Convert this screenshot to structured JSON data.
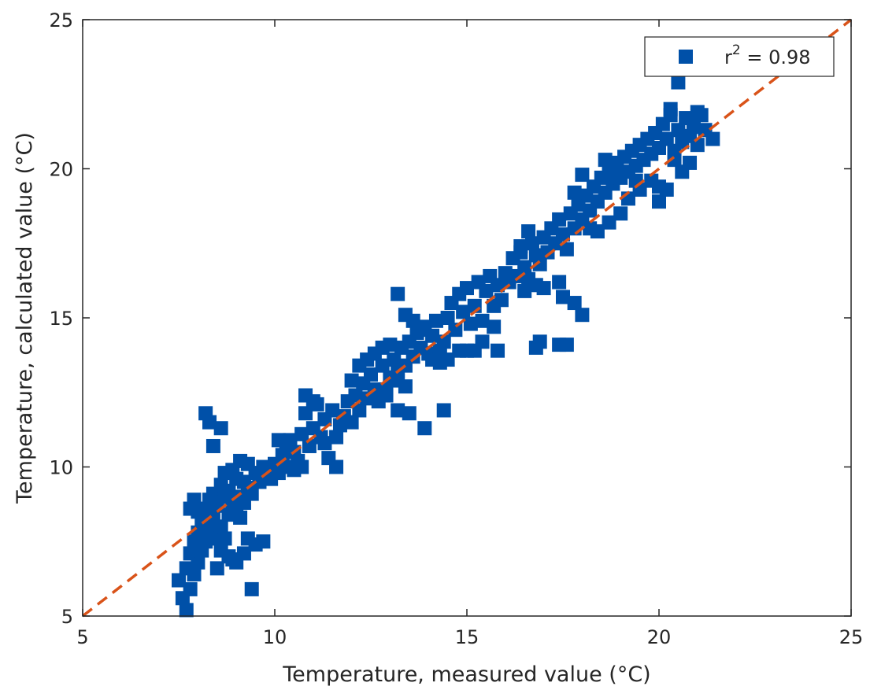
{
  "chart_data": {
    "type": "scatter",
    "title": "",
    "xlabel": "Temperature, measured value (°C)",
    "ylabel": "Temperature, calculated value (°C)",
    "xlim": [
      5,
      25
    ],
    "ylim": [
      5,
      25
    ],
    "xticks": [
      "5",
      "10",
      "15",
      "20",
      "25"
    ],
    "yticks": [
      "5",
      "10",
      "15",
      "20",
      "25"
    ],
    "grid": false,
    "legend_position": "top-right",
    "legend": {
      "marker_label_prefix": "r",
      "marker_label_sup": "2",
      "marker_label_suffix": " = 0.98"
    },
    "colors": {
      "points": "#0050a8",
      "line": "#d95319"
    },
    "reference_line": {
      "x": [
        5,
        25
      ],
      "y": [
        5,
        25
      ],
      "style": "dashed"
    },
    "series": [
      {
        "marker": "square",
        "points": [
          [
            7.5,
            6.2
          ],
          [
            7.6,
            5.6
          ],
          [
            7.7,
            5.2
          ],
          [
            7.7,
            6.6
          ],
          [
            7.8,
            5.9
          ],
          [
            7.8,
            7.1
          ],
          [
            7.9,
            6.4
          ],
          [
            7.9,
            7.5
          ],
          [
            8.0,
            6.8
          ],
          [
            8.0,
            7.8
          ],
          [
            8.1,
            7.2
          ],
          [
            8.1,
            8.2
          ],
          [
            8.2,
            7.5
          ],
          [
            8.2,
            8.6
          ],
          [
            8.3,
            7.9
          ],
          [
            8.3,
            8.9
          ],
          [
            8.4,
            8.3
          ],
          [
            8.4,
            9.1
          ],
          [
            8.5,
            7.6
          ],
          [
            8.5,
            8.7
          ],
          [
            8.6,
            9.4
          ],
          [
            8.6,
            8.0
          ],
          [
            8.7,
            9.0
          ],
          [
            8.7,
            9.8
          ],
          [
            8.8,
            8.4
          ],
          [
            8.8,
            9.2
          ],
          [
            8.9,
            8.8
          ],
          [
            8.9,
            9.9
          ],
          [
            9.0,
            8.6
          ],
          [
            9.0,
            9.6
          ],
          [
            9.1,
            9.0
          ],
          [
            9.1,
            10.2
          ],
          [
            9.2,
            8.8
          ],
          [
            9.2,
            9.5
          ],
          [
            9.3,
            9.3
          ],
          [
            9.3,
            10.1
          ],
          [
            9.4,
            9.1
          ],
          [
            9.5,
            9.8
          ],
          [
            9.6,
            9.5
          ],
          [
            9.7,
            10.0
          ],
          [
            8.2,
            11.8
          ],
          [
            8.3,
            11.5
          ],
          [
            8.4,
            10.7
          ],
          [
            8.6,
            11.3
          ],
          [
            8.4,
            8.8
          ],
          [
            7.8,
            8.6
          ],
          [
            7.9,
            8.9
          ],
          [
            8.0,
            8.5
          ],
          [
            8.6,
            7.2
          ],
          [
            8.8,
            7.0
          ],
          [
            9.0,
            6.8
          ],
          [
            9.2,
            7.1
          ],
          [
            9.4,
            5.9
          ],
          [
            9.5,
            7.4
          ],
          [
            9.7,
            7.5
          ],
          [
            9.3,
            7.6
          ],
          [
            8.9,
            6.9
          ],
          [
            8.5,
            6.6
          ],
          [
            8.7,
            7.6
          ],
          [
            9.1,
            8.3
          ],
          [
            9.8,
            9.9
          ],
          [
            9.9,
            9.6
          ],
          [
            10.0,
            10.1
          ],
          [
            10.1,
            9.8
          ],
          [
            10.2,
            10.4
          ],
          [
            10.3,
            10.0
          ],
          [
            10.4,
            10.9
          ],
          [
            10.5,
            10.5
          ],
          [
            10.6,
            10.2
          ],
          [
            10.7,
            11.1
          ],
          [
            10.8,
            11.8
          ],
          [
            10.9,
            10.7
          ],
          [
            11.0,
            11.3
          ],
          [
            11.1,
            12.1
          ],
          [
            11.2,
            11.0
          ],
          [
            11.3,
            11.6
          ],
          [
            11.4,
            10.3
          ],
          [
            11.5,
            11.9
          ],
          [
            11.6,
            10.0
          ],
          [
            11.7,
            11.4
          ],
          [
            10.1,
            10.9
          ],
          [
            10.3,
            10.6
          ],
          [
            10.5,
            9.9
          ],
          [
            10.7,
            10.0
          ],
          [
            10.8,
            12.4
          ],
          [
            11.0,
            12.2
          ],
          [
            11.3,
            10.8
          ],
          [
            11.6,
            11.0
          ],
          [
            11.8,
            11.7
          ],
          [
            11.9,
            12.2
          ],
          [
            12.0,
            11.5
          ],
          [
            12.1,
            12.4
          ],
          [
            12.2,
            11.9
          ],
          [
            12.3,
            12.8
          ],
          [
            12.4,
            12.3
          ],
          [
            12.5,
            13.1
          ],
          [
            12.6,
            12.6
          ],
          [
            12.7,
            12.2
          ],
          [
            12.8,
            13.4
          ],
          [
            12.9,
            12.4
          ],
          [
            13.0,
            13.0
          ],
          [
            13.1,
            13.6
          ],
          [
            13.2,
            13.2
          ],
          [
            13.3,
            14.0
          ],
          [
            13.4,
            13.4
          ],
          [
            13.5,
            14.2
          ],
          [
            13.6,
            13.7
          ],
          [
            13.7,
            14.5
          ],
          [
            12.0,
            12.9
          ],
          [
            12.2,
            13.4
          ],
          [
            12.4,
            13.6
          ],
          [
            12.6,
            13.8
          ],
          [
            12.8,
            14.0
          ],
          [
            13.0,
            14.1
          ],
          [
            13.2,
            12.9
          ],
          [
            13.4,
            12.7
          ],
          [
            12.6,
            12.4
          ],
          [
            12.9,
            12.6
          ],
          [
            13.8,
            14.0
          ],
          [
            13.9,
            14.6
          ],
          [
            14.0,
            13.8
          ],
          [
            14.1,
            14.4
          ],
          [
            14.2,
            14.9
          ],
          [
            14.3,
            13.5
          ],
          [
            14.4,
            14.2
          ],
          [
            14.5,
            15.0
          ],
          [
            14.6,
            15.5
          ],
          [
            14.7,
            14.6
          ],
          [
            14.8,
            15.8
          ],
          [
            14.9,
            15.2
          ],
          [
            15.0,
            16.0
          ],
          [
            15.1,
            14.8
          ],
          [
            15.2,
            15.4
          ],
          [
            15.3,
            16.2
          ],
          [
            15.4,
            14.9
          ],
          [
            15.5,
            15.9
          ],
          [
            15.6,
            16.4
          ],
          [
            15.7,
            15.4
          ],
          [
            13.2,
            15.8
          ],
          [
            13.4,
            15.1
          ],
          [
            13.6,
            14.9
          ],
          [
            13.9,
            14.7
          ],
          [
            14.1,
            13.6
          ],
          [
            14.3,
            13.9
          ],
          [
            14.5,
            13.6
          ],
          [
            14.8,
            13.9
          ],
          [
            15.0,
            13.9
          ],
          [
            15.2,
            13.9
          ],
          [
            15.4,
            14.2
          ],
          [
            15.7,
            14.7
          ],
          [
            15.8,
            13.9
          ],
          [
            13.2,
            11.9
          ],
          [
            13.9,
            11.3
          ],
          [
            14.4,
            11.9
          ],
          [
            13.5,
            11.8
          ],
          [
            15.8,
            16.1
          ],
          [
            15.9,
            15.6
          ],
          [
            16.0,
            16.5
          ],
          [
            16.1,
            16.2
          ],
          [
            16.2,
            17.0
          ],
          [
            16.3,
            16.4
          ],
          [
            16.4,
            17.2
          ],
          [
            16.5,
            16.7
          ],
          [
            16.6,
            16.3
          ],
          [
            16.7,
            17.5
          ],
          [
            16.8,
            17.1
          ],
          [
            16.9,
            16.8
          ],
          [
            17.0,
            17.7
          ],
          [
            17.1,
            17.2
          ],
          [
            17.2,
            18.0
          ],
          [
            17.3,
            17.5
          ],
          [
            17.4,
            18.3
          ],
          [
            17.5,
            17.8
          ],
          [
            17.6,
            17.3
          ],
          [
            17.7,
            18.5
          ],
          [
            16.5,
            15.9
          ],
          [
            16.8,
            16.1
          ],
          [
            17.0,
            16.0
          ],
          [
            17.4,
            16.2
          ],
          [
            17.5,
            15.7
          ],
          [
            17.6,
            14.1
          ],
          [
            17.4,
            14.1
          ],
          [
            16.9,
            14.2
          ],
          [
            16.8,
            14.0
          ],
          [
            17.8,
            15.5
          ],
          [
            18.0,
            15.1
          ],
          [
            16.4,
            17.4
          ],
          [
            16.6,
            17.9
          ],
          [
            17.8,
            18.0
          ],
          [
            17.9,
            18.8
          ],
          [
            18.0,
            18.3
          ],
          [
            18.1,
            19.1
          ],
          [
            18.2,
            18.6
          ],
          [
            18.3,
            19.4
          ],
          [
            18.4,
            18.9
          ],
          [
            18.5,
            19.7
          ],
          [
            18.6,
            19.2
          ],
          [
            18.7,
            19.9
          ],
          [
            18.8,
            19.5
          ],
          [
            18.9,
            20.2
          ],
          [
            19.0,
            19.7
          ],
          [
            19.1,
            20.4
          ],
          [
            19.2,
            19.9
          ],
          [
            19.3,
            20.6
          ],
          [
            19.4,
            20.1
          ],
          [
            19.5,
            20.8
          ],
          [
            19.6,
            20.3
          ],
          [
            19.7,
            21.0
          ],
          [
            18.0,
            19.8
          ],
          [
            17.8,
            19.2
          ],
          [
            18.2,
            18.0
          ],
          [
            18.4,
            17.9
          ],
          [
            18.7,
            18.2
          ],
          [
            19.0,
            18.5
          ],
          [
            19.2,
            19.0
          ],
          [
            19.5,
            19.3
          ],
          [
            19.8,
            19.6
          ],
          [
            20.0,
            19.4
          ],
          [
            18.6,
            20.3
          ],
          [
            18.9,
            20.0
          ],
          [
            19.4,
            19.6
          ],
          [
            19.8,
            20.5
          ],
          [
            19.9,
            21.2
          ],
          [
            20.0,
            20.7
          ],
          [
            20.1,
            21.5
          ],
          [
            20.2,
            21.0
          ],
          [
            20.3,
            21.8
          ],
          [
            20.4,
            20.6
          ],
          [
            20.5,
            21.3
          ],
          [
            20.6,
            20.9
          ],
          [
            20.7,
            21.7
          ],
          [
            20.8,
            21.1
          ],
          [
            20.9,
            21.4
          ],
          [
            21.0,
            21.9
          ],
          [
            21.2,
            21.3
          ],
          [
            21.4,
            21.0
          ],
          [
            20.6,
            19.9
          ],
          [
            20.8,
            20.2
          ],
          [
            20.2,
            19.3
          ],
          [
            20.0,
            18.9
          ],
          [
            20.3,
            22.0
          ],
          [
            20.5,
            22.9
          ],
          [
            21.1,
            21.8
          ],
          [
            20.9,
            21.6
          ],
          [
            21.0,
            20.8
          ],
          [
            20.4,
            20.3
          ]
        ]
      }
    ]
  }
}
